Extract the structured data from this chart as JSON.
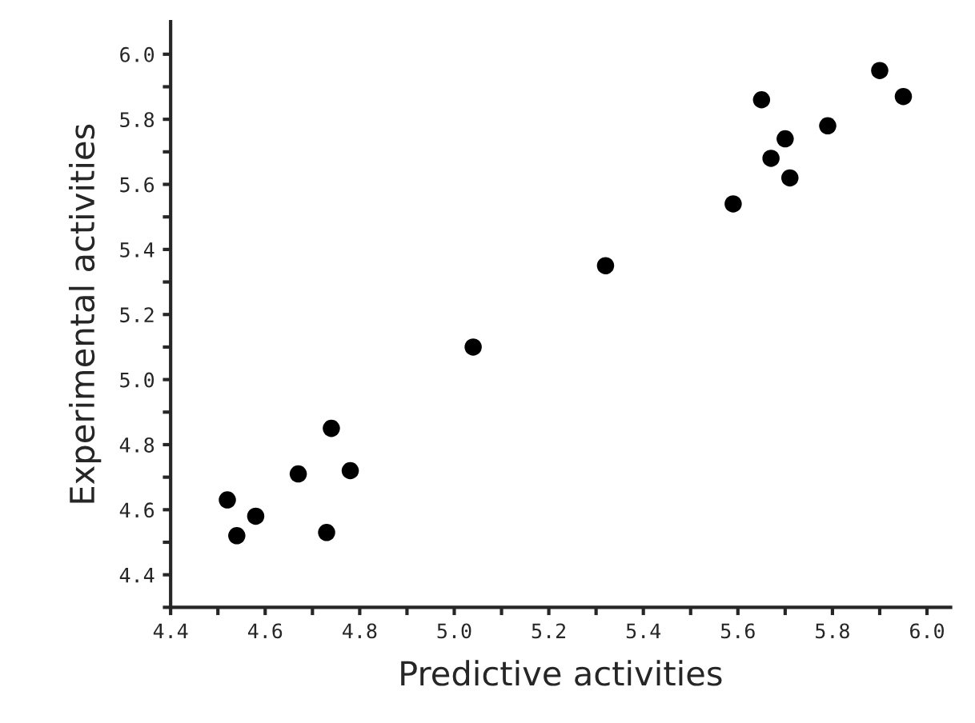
{
  "chart_data": {
    "type": "scatter",
    "xlabel": "Predictive activities",
    "ylabel": "Experimental activities",
    "xlim": [
      4.4,
      6.05
    ],
    "ylim": [
      4.3,
      6.1
    ],
    "xticks": [
      "4.4",
      {
        "value": 4.5,
        "label": null
      },
      {
        "value": 4.6,
        "label": "4.6"
      },
      {
        "value": 4.7,
        "label": null
      },
      {
        "value": 4.8,
        "label": "4.8"
      },
      {
        "value": 4.9,
        "label": null
      },
      {
        "value": 5.0,
        "label": "5.0"
      },
      {
        "value": 5.1,
        "label": null
      },
      {
        "value": 5.2,
        "label": "5.2"
      },
      {
        "value": 5.3,
        "label": null
      },
      {
        "value": 5.4,
        "label": "5.4"
      },
      {
        "value": 5.5,
        "label": null
      },
      {
        "value": 5.6,
        "label": "5.6"
      },
      {
        "value": 5.7,
        "label": null
      },
      {
        "value": 5.8,
        "label": "5.8"
      },
      {
        "value": 5.9,
        "label": null
      },
      {
        "value": 6.0,
        "label": "6.0"
      }
    ],
    "yticks": [
      {
        "value": 4.3,
        "label": null
      },
      {
        "value": 4.4,
        "label": "4.4"
      },
      {
        "value": 4.5,
        "label": null
      },
      {
        "value": 4.6,
        "label": "4.6"
      },
      {
        "value": 4.7,
        "label": null
      },
      {
        "value": 4.8,
        "label": "4.8"
      },
      {
        "value": 4.9,
        "label": null
      },
      {
        "value": 5.0,
        "label": "5.0"
      },
      {
        "value": 5.1,
        "label": null
      },
      {
        "value": 5.2,
        "label": "5.2"
      },
      {
        "value": 5.3,
        "label": null
      },
      {
        "value": 5.4,
        "label": "5.4"
      },
      {
        "value": 5.5,
        "label": null
      },
      {
        "value": 5.6,
        "label": "5.6"
      },
      {
        "value": 5.7,
        "label": null
      },
      {
        "value": 5.8,
        "label": "5.8"
      },
      {
        "value": 5.9,
        "label": null
      },
      {
        "value": 6.0,
        "label": "6.0"
      }
    ],
    "grid": false,
    "marker": "circle",
    "series": [
      {
        "color": "#000000",
        "x": [
          5.9,
          5.95,
          5.65,
          5.79,
          5.7,
          5.67,
          5.71,
          5.59,
          5.32,
          5.04,
          4.74,
          4.78,
          4.67,
          4.52,
          4.58,
          4.54,
          4.73
        ],
        "values": [
          5.95,
          5.87,
          5.86,
          5.78,
          5.74,
          5.68,
          5.62,
          5.54,
          5.35,
          5.1,
          4.85,
          4.72,
          4.71,
          4.63,
          4.58,
          4.52,
          4.53
        ]
      }
    ]
  }
}
